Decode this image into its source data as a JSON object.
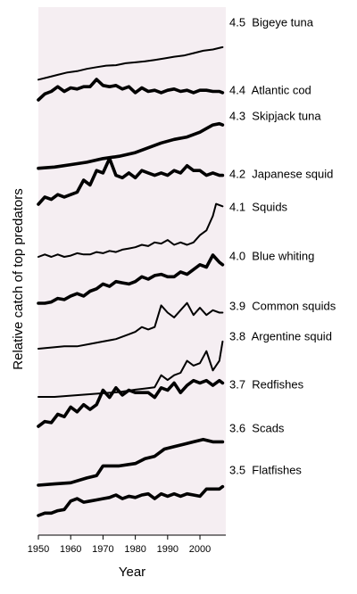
{
  "chart_data": {
    "type": "line",
    "xlabel": "Year",
    "ylabel": "Relative catch of top predators",
    "xlim": [
      1950,
      2008
    ],
    "xticks": [
      "1950",
      "1960",
      "1970",
      "1980",
      "1990",
      "2000"
    ],
    "panel_color": "#f5eef2",
    "line_color": "#000000",
    "series": [
      {
        "label": "4.5  Bigeye tuna",
        "weight": "thin",
        "x": [
          1950,
          1953,
          1956,
          1959,
          1962,
          1965,
          1968,
          1971,
          1974,
          1977,
          1980,
          1983,
          1986,
          1989,
          1992,
          1995,
          1998,
          2001,
          2004,
          2007
        ],
        "y": [
          0.1,
          0.2,
          0.3,
          0.4,
          0.45,
          0.55,
          0.62,
          0.68,
          0.7,
          0.78,
          0.82,
          0.86,
          0.92,
          0.98,
          1.05,
          1.1,
          1.2,
          1.3,
          1.35,
          1.45
        ]
      },
      {
        "label": "4.4  Atlantic cod",
        "weight": "bold",
        "x": [
          1950,
          1952,
          1954,
          1956,
          1958,
          1960,
          1962,
          1964,
          1966,
          1968,
          1970,
          1972,
          1974,
          1976,
          1978,
          1980,
          1982,
          1984,
          1986,
          1988,
          1990,
          1992,
          1994,
          1996,
          1998,
          2000,
          2002,
          2004,
          2006,
          2007
        ],
        "y": [
          0.0,
          0.25,
          0.35,
          0.55,
          0.35,
          0.5,
          0.45,
          0.55,
          0.55,
          0.85,
          0.6,
          0.55,
          0.6,
          0.45,
          0.55,
          0.3,
          0.5,
          0.35,
          0.4,
          0.3,
          0.4,
          0.45,
          0.35,
          0.4,
          0.3,
          0.4,
          0.4,
          0.35,
          0.35,
          0.3
        ]
      },
      {
        "label": "4.3  Skipjack tuna",
        "weight": "bold",
        "x": [
          1950,
          1955,
          1960,
          1965,
          1970,
          1975,
          1980,
          1984,
          1988,
          1992,
          1996,
          2000,
          2002,
          2004,
          2006,
          2007
        ],
        "y": [
          0.05,
          0.1,
          0.2,
          0.3,
          0.45,
          0.55,
          0.7,
          0.9,
          1.1,
          1.25,
          1.35,
          1.55,
          1.7,
          1.85,
          1.9,
          1.85
        ]
      },
      {
        "label": "4.2  Japanese squid",
        "weight": "bold",
        "x": [
          1950,
          1952,
          1954,
          1956,
          1958,
          1960,
          1962,
          1964,
          1966,
          1968,
          1970,
          1972,
          1974,
          1976,
          1978,
          1980,
          1982,
          1984,
          1986,
          1988,
          1990,
          1992,
          1994,
          1996,
          1998,
          2000,
          2002,
          2004,
          2006,
          2007
        ],
        "y": [
          0.0,
          0.3,
          0.2,
          0.4,
          0.3,
          0.4,
          0.5,
          1.0,
          0.8,
          1.4,
          1.3,
          1.9,
          1.2,
          1.1,
          1.3,
          1.1,
          1.4,
          1.3,
          1.2,
          1.3,
          1.2,
          1.4,
          1.3,
          1.6,
          1.4,
          1.4,
          1.2,
          1.3,
          1.2,
          1.2
        ]
      },
      {
        "label": "4.1  Squids",
        "weight": "thin",
        "x": [
          1950,
          1952,
          1954,
          1956,
          1958,
          1960,
          1962,
          1964,
          1966,
          1968,
          1970,
          1972,
          1974,
          1976,
          1978,
          1980,
          1982,
          1984,
          1986,
          1988,
          1990,
          1992,
          1994,
          1996,
          1998,
          2000,
          2002,
          2004,
          2005,
          2007
        ],
        "y": [
          0.0,
          0.1,
          0.0,
          0.1,
          0.0,
          0.05,
          0.15,
          0.1,
          0.1,
          0.2,
          0.15,
          0.25,
          0.2,
          0.3,
          0.35,
          0.4,
          0.5,
          0.45,
          0.6,
          0.55,
          0.7,
          0.5,
          0.6,
          0.5,
          0.6,
          0.9,
          1.1,
          1.7,
          2.2,
          2.1
        ]
      },
      {
        "label": "4.0  Blue whiting",
        "weight": "bold",
        "x": [
          1950,
          1952,
          1954,
          1956,
          1958,
          1960,
          1962,
          1964,
          1966,
          1968,
          1970,
          1972,
          1974,
          1976,
          1978,
          1980,
          1982,
          1984,
          1986,
          1988,
          1990,
          1992,
          1994,
          1996,
          1998,
          2000,
          2002,
          2004,
          2006,
          2007
        ],
        "y": [
          0.0,
          0.0,
          0.05,
          0.2,
          0.15,
          0.3,
          0.4,
          0.3,
          0.5,
          0.6,
          0.8,
          0.7,
          0.9,
          0.85,
          0.8,
          0.9,
          1.1,
          1.0,
          1.15,
          1.2,
          1.1,
          1.1,
          1.3,
          1.2,
          1.4,
          1.6,
          1.5,
          2.0,
          1.7,
          1.6
        ]
      },
      {
        "label": "3.9  Common squids",
        "weight": "thin",
        "x": [
          1950,
          1954,
          1958,
          1962,
          1966,
          1970,
          1974,
          1978,
          1980,
          1982,
          1984,
          1986,
          1988,
          1990,
          1992,
          1994,
          1996,
          1998,
          2000,
          2002,
          2004,
          2006,
          2007
        ],
        "y": [
          0.0,
          0.05,
          0.1,
          0.1,
          0.2,
          0.3,
          0.4,
          0.6,
          0.7,
          0.9,
          0.8,
          0.9,
          1.8,
          1.5,
          1.3,
          1.6,
          1.9,
          1.4,
          1.7,
          1.4,
          1.6,
          1.5,
          1.5
        ]
      },
      {
        "label": "3.8  Argentine squid",
        "weight": "thin",
        "x": [
          1950,
          1955,
          1960,
          1965,
          1970,
          1975,
          1980,
          1983,
          1986,
          1988,
          1990,
          1992,
          1994,
          1996,
          1998,
          2000,
          2002,
          2003,
          2004,
          2005,
          2006,
          2007
        ],
        "y": [
          0.0,
          0.0,
          0.05,
          0.1,
          0.15,
          0.2,
          0.3,
          0.35,
          0.4,
          0.9,
          0.7,
          0.9,
          1.0,
          1.5,
          1.3,
          1.4,
          1.9,
          1.5,
          1.1,
          1.3,
          1.5,
          2.3
        ]
      },
      {
        "label": "3.7  Redfishes",
        "weight": "bold",
        "x": [
          1950,
          1952,
          1954,
          1956,
          1958,
          1960,
          1962,
          1964,
          1966,
          1968,
          1970,
          1972,
          1974,
          1976,
          1978,
          1980,
          1982,
          1984,
          1986,
          1988,
          1990,
          1992,
          1994,
          1996,
          1998,
          2000,
          2002,
          2004,
          2006,
          2007
        ],
        "y": [
          0.0,
          0.2,
          0.15,
          0.5,
          0.4,
          0.8,
          0.6,
          0.9,
          0.7,
          0.9,
          1.5,
          1.2,
          1.6,
          1.3,
          1.5,
          1.4,
          1.4,
          1.4,
          1.2,
          1.6,
          1.5,
          1.8,
          1.4,
          1.7,
          1.9,
          1.8,
          1.9,
          1.7,
          1.9,
          1.8
        ]
      },
      {
        "label": "3.6  Scads",
        "weight": "bold",
        "x": [
          1950,
          1955,
          1960,
          1965,
          1968,
          1970,
          1975,
          1980,
          1983,
          1986,
          1989,
          1992,
          1995,
          1998,
          2001,
          2004,
          2007
        ],
        "y": [
          0.0,
          0.05,
          0.1,
          0.3,
          0.4,
          0.8,
          0.8,
          0.9,
          1.1,
          1.2,
          1.5,
          1.6,
          1.7,
          1.8,
          1.9,
          1.8,
          1.8
        ]
      },
      {
        "label": "3.5  Flatfishes",
        "weight": "bold",
        "x": [
          1950,
          1952,
          1954,
          1956,
          1958,
          1960,
          1962,
          1964,
          1966,
          1968,
          1970,
          1972,
          1974,
          1976,
          1978,
          1980,
          1982,
          1984,
          1986,
          1988,
          1990,
          1992,
          1994,
          1996,
          1998,
          2000,
          2002,
          2004,
          2006,
          2007
        ],
        "y": [
          0.0,
          0.1,
          0.1,
          0.2,
          0.25,
          0.6,
          0.7,
          0.55,
          0.6,
          0.65,
          0.7,
          0.75,
          0.85,
          0.7,
          0.8,
          0.75,
          0.85,
          0.9,
          0.7,
          0.9,
          0.8,
          0.9,
          0.8,
          0.9,
          0.85,
          0.8,
          1.1,
          1.1,
          1.1,
          1.2
        ]
      }
    ]
  }
}
